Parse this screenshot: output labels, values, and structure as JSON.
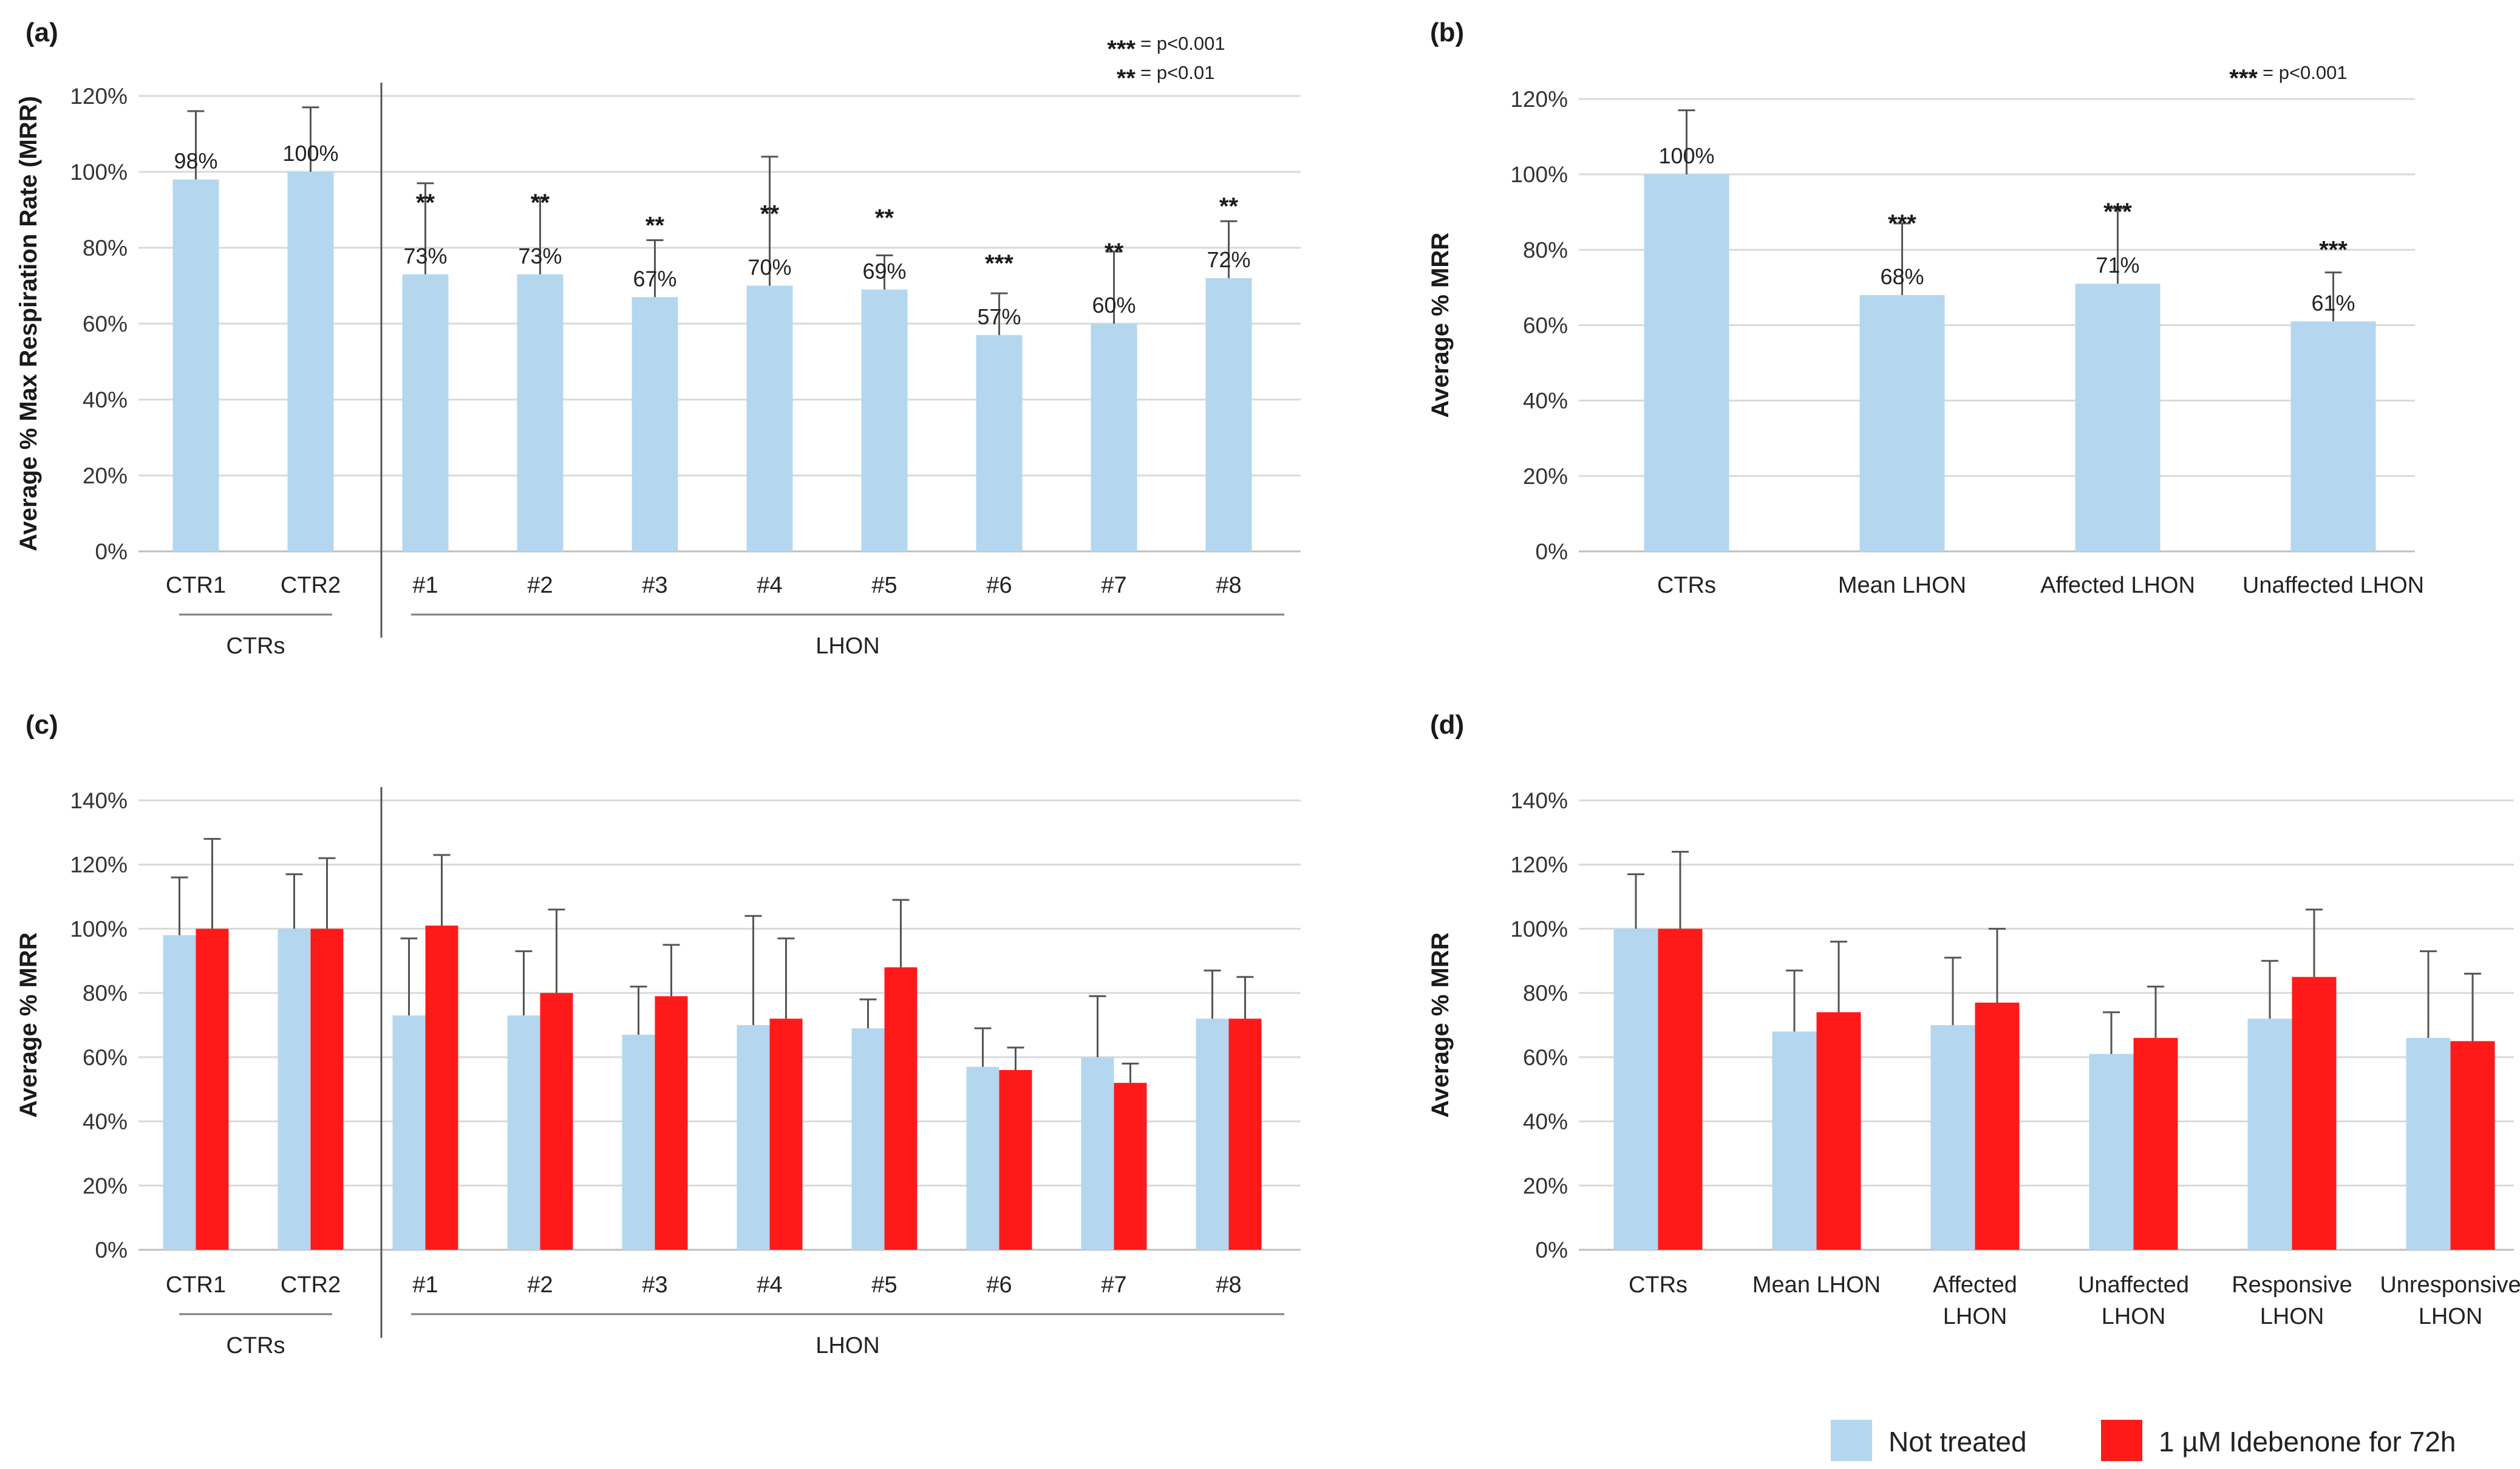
{
  "legend": {
    "items": [
      {
        "label": "Not treated",
        "color": "#b4d7ef"
      },
      {
        "label": "1 µM Idebenone for 72h",
        "color": "#ff1a1a"
      }
    ]
  },
  "chart_data": [
    {
      "panel": "(a)",
      "type": "bar",
      "ylabel": "Average % Max Respiration Rate (MRR)",
      "ylim": [
        0,
        120
      ],
      "yticks": [
        "0%",
        "20%",
        "40%",
        "60%",
        "80%",
        "100%",
        "120%"
      ],
      "categories": [
        "CTR1",
        "CTR2",
        "#1",
        "#2",
        "#3",
        "#4",
        "#5",
        "#6",
        "#7",
        "#8"
      ],
      "series": [
        {
          "name": "Not treated",
          "values": [
            98,
            100,
            73,
            73,
            67,
            70,
            69,
            57,
            60,
            72
          ],
          "errors": [
            18,
            17,
            24,
            20,
            15,
            34,
            9,
            11,
            19,
            15
          ]
        }
      ],
      "data_labels": [
        "98%",
        "100%",
        "73%",
        "73%",
        "67%",
        "70%",
        "69%",
        "57%",
        "60%",
        "72%"
      ],
      "significance": [
        "",
        "",
        "**",
        "**",
        "**",
        "**",
        "**",
        "***",
        "**",
        "**"
      ],
      "groups": [
        {
          "label": "CTRs",
          "from": 0,
          "to": 1
        },
        {
          "label": "LHON",
          "from": 2,
          "to": 9
        }
      ],
      "notes": [
        {
          "stars": "***",
          "text": "= p<0.001"
        },
        {
          "stars": "**",
          "text": "= p<0.01"
        }
      ]
    },
    {
      "panel": "(b)",
      "type": "bar",
      "ylabel": "Average % MRR",
      "ylim": [
        0,
        120
      ],
      "yticks": [
        "0%",
        "20%",
        "40%",
        "60%",
        "80%",
        "100%",
        "120%"
      ],
      "categories": [
        "CTRs",
        "Mean LHON",
        "Affected LHON",
        "Unaffected LHON"
      ],
      "series": [
        {
          "name": "Not treated",
          "values": [
            100,
            68,
            71,
            61
          ],
          "errors": [
            17,
            19,
            20,
            13
          ]
        }
      ],
      "data_labels": [
        "100%",
        "68%",
        "71%",
        "61%"
      ],
      "significance": [
        "",
        "***",
        "***",
        "***"
      ],
      "notes": [
        {
          "stars": "***",
          "text": "= p<0.001"
        }
      ]
    },
    {
      "panel": "(c)",
      "type": "bar",
      "ylabel": "Average % MRR",
      "ylim": [
        0,
        140
      ],
      "yticks": [
        "0%",
        "20%",
        "40%",
        "60%",
        "80%",
        "100%",
        "120%",
        "140%"
      ],
      "categories": [
        "CTR1",
        "CTR2",
        "#1",
        "#2",
        "#3",
        "#4",
        "#5",
        "#6",
        "#7",
        "#8"
      ],
      "series": [
        {
          "name": "Not treated",
          "values": [
            98,
            100,
            73,
            73,
            67,
            70,
            69,
            57,
            60,
            72
          ],
          "errors": [
            18,
            17,
            24,
            20,
            15,
            34,
            9,
            12,
            19,
            15
          ]
        },
        {
          "name": "1 µM Idebenone for 72h",
          "values": [
            100,
            100,
            101,
            80,
            79,
            72,
            88,
            56,
            52,
            72
          ],
          "errors": [
            28,
            22,
            22,
            26,
            16,
            25,
            21,
            7,
            6,
            13
          ]
        }
      ],
      "groups": [
        {
          "label": "CTRs",
          "from": 0,
          "to": 1
        },
        {
          "label": "LHON",
          "from": 2,
          "to": 9
        }
      ]
    },
    {
      "panel": "(d)",
      "type": "bar",
      "ylabel": "Average % MRR",
      "ylim": [
        0,
        140
      ],
      "yticks": [
        "0%",
        "20%",
        "40%",
        "60%",
        "80%",
        "100%",
        "120%",
        "140%"
      ],
      "categories": [
        "CTRs",
        "Mean LHON",
        "Affected LHON",
        "Unaffected LHON",
        "Responsive LHON",
        "Unresponsive LHON"
      ],
      "category_lines": [
        [
          "CTRs"
        ],
        [
          "Mean LHON"
        ],
        [
          "Affected",
          "LHON"
        ],
        [
          "Unaffected",
          "LHON"
        ],
        [
          "Responsive",
          "LHON"
        ],
        [
          "Unresponsive",
          "LHON"
        ]
      ],
      "series": [
        {
          "name": "Not treated",
          "values": [
            100,
            68,
            70,
            61,
            72,
            66
          ],
          "errors": [
            17,
            19,
            21,
            13,
            18,
            27
          ]
        },
        {
          "name": "1 µM Idebenone for 72h",
          "values": [
            100,
            74,
            77,
            66,
            85,
            65
          ],
          "errors": [
            24,
            22,
            23,
            16,
            21,
            21
          ]
        }
      ]
    }
  ]
}
